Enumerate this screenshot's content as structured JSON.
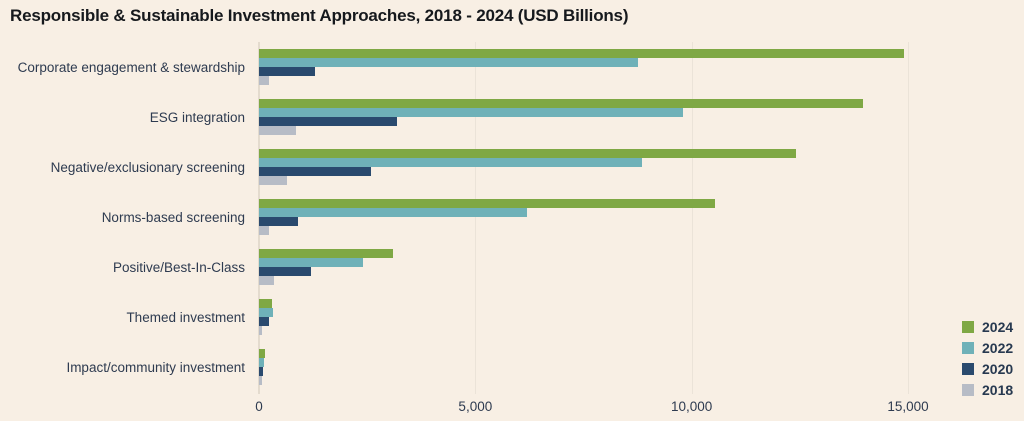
{
  "chart_data": {
    "type": "bar",
    "orientation": "horizontal",
    "title": "Responsible & Sustainable Investment Approaches, 2018 - 2024 (USD Billions)",
    "categories": [
      "Corporate engagement & stewardship",
      "ESG integration",
      "Negative/exclusionary screening",
      "Norms-based screening",
      "Positive/Best-In-Class",
      "Themed investment",
      "Impact/community investment"
    ],
    "series": [
      {
        "name": "2024",
        "color": "#7fa844",
        "values": [
          14900,
          13950,
          12400,
          10550,
          3100,
          300,
          130
        ]
      },
      {
        "name": "2022",
        "color": "#6fb1b8",
        "values": [
          8750,
          9800,
          8850,
          6200,
          2400,
          320,
          110
        ]
      },
      {
        "name": "2020",
        "color": "#2a4a6e",
        "values": [
          1300,
          3200,
          2600,
          900,
          1200,
          240,
          95
        ]
      },
      {
        "name": "2018",
        "color": "#b7bcc6",
        "values": [
          230,
          850,
          650,
          240,
          350,
          60,
          70
        ]
      }
    ],
    "x_ticks": [
      {
        "label": "0",
        "value": 0
      },
      {
        "label": "5,000",
        "value": 5000
      },
      {
        "label": "10,000",
        "value": 10000
      },
      {
        "label": "15,000",
        "value": 15000
      }
    ],
    "xlim": [
      0,
      15000
    ],
    "grid": true,
    "legend_position": "bottom-right",
    "background": "#f8efe4",
    "text_color": "#2e3b50"
  }
}
